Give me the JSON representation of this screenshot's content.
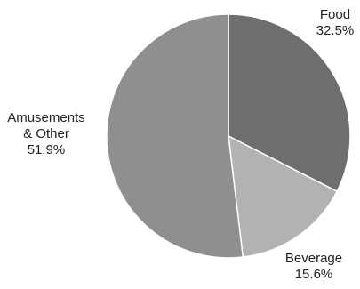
{
  "chart_data": {
    "type": "pie",
    "title": "",
    "slices": [
      {
        "label": "Food",
        "value": 32.5,
        "value_label": "32.5%",
        "color": "#6e6e6e"
      },
      {
        "label": "Beverage",
        "value": 15.6,
        "value_label": "15.6%",
        "color": "#b2b2b2"
      },
      {
        "label": "Amusements & Other",
        "label_lines": [
          "Amusements",
          "& Other"
        ],
        "value": 51.9,
        "value_label": "51.9%",
        "color": "#8f8f8f"
      }
    ],
    "start_angle": "12 o'clock, clockwise",
    "legend": "none"
  }
}
